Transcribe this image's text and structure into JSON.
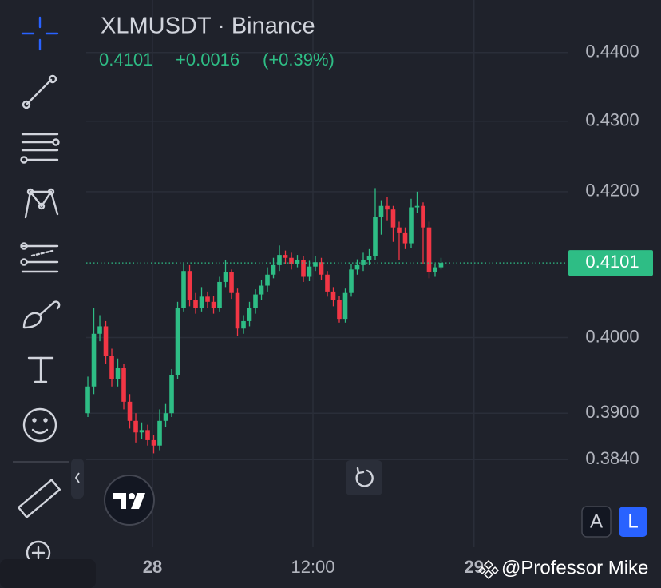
{
  "chart_data": {
    "type": "candlestick",
    "title": "XLMUSDT · Binance",
    "last_price_label": "0.4101",
    "change_label": "+0.0016",
    "change_percent_label": "(+0.39%)",
    "last_price": 0.4101,
    "up_color": "#2ebd85",
    "down_color": "#f23645",
    "log_scale": true,
    "grid": true,
    "categories": [
      null,
      null,
      null,
      null,
      null,
      null,
      null,
      null,
      null,
      null,
      null,
      null,
      null,
      null,
      null,
      null,
      null,
      null,
      null,
      null,
      null,
      null,
      null,
      null,
      null,
      null,
      null,
      null,
      null,
      null,
      null,
      null,
      null,
      null,
      null,
      null,
      null,
      null,
      null,
      null,
      null,
      null,
      null,
      null,
      null,
      null,
      null,
      null,
      null,
      null,
      null,
      null,
      null,
      null,
      null,
      null,
      null,
      null,
      null,
      null
    ],
    "open": [
      0.39,
      0.3935,
      0.4005,
      0.4015,
      0.3975,
      0.3945,
      0.396,
      0.3915,
      0.389,
      0.3875,
      0.3878,
      0.3865,
      0.3858,
      0.389,
      0.39,
      0.395,
      0.404,
      0.409,
      0.405,
      0.404,
      0.4055,
      0.4048,
      0.404,
      0.4075,
      0.4088,
      0.406,
      0.4012,
      0.4022,
      0.404,
      0.4058,
      0.407,
      0.4085,
      0.4098,
      0.4112,
      0.4108,
      0.41,
      0.4105,
      0.4082,
      0.4096,
      0.4102,
      0.4085,
      0.4062,
      0.405,
      0.4025,
      0.406,
      0.4092,
      0.4098,
      0.4105,
      0.411,
      0.4165,
      0.418,
      0.4175,
      0.415,
      0.4142,
      0.4128,
      0.4178,
      0.418,
      0.415,
      0.4088,
      0.4095
    ],
    "high": [
      0.3948,
      0.404,
      0.403,
      0.4022,
      0.3985,
      0.3972,
      0.3965,
      0.3925,
      0.39,
      0.3888,
      0.3885,
      0.3872,
      0.3905,
      0.3912,
      0.3958,
      0.4048,
      0.4102,
      0.4098,
      0.406,
      0.4068,
      0.4062,
      0.4056,
      0.4082,
      0.4105,
      0.4092,
      0.4066,
      0.403,
      0.4048,
      0.4065,
      0.4078,
      0.4095,
      0.4108,
      0.4125,
      0.4118,
      0.4115,
      0.4112,
      0.411,
      0.4104,
      0.411,
      0.4108,
      0.409,
      0.4068,
      0.4056,
      0.4066,
      0.41,
      0.4106,
      0.4115,
      0.412,
      0.4205,
      0.4188,
      0.4192,
      0.418,
      0.4158,
      0.415,
      0.419,
      0.42,
      0.4185,
      0.4158,
      0.41,
      0.4108
    ],
    "low": [
      0.3895,
      0.3925,
      0.3995,
      0.3965,
      0.3935,
      0.3935,
      0.3905,
      0.388,
      0.3862,
      0.3866,
      0.3858,
      0.3848,
      0.3852,
      0.3882,
      0.3895,
      0.3945,
      0.4035,
      0.4042,
      0.4032,
      0.4035,
      0.404,
      0.4032,
      0.4035,
      0.4068,
      0.4052,
      0.4002,
      0.4005,
      0.4015,
      0.4032,
      0.405,
      0.4062,
      0.408,
      0.409,
      0.41,
      0.4092,
      0.4095,
      0.4075,
      0.4076,
      0.409,
      0.4078,
      0.4055,
      0.4042,
      0.402,
      0.402,
      0.4055,
      0.4085,
      0.409,
      0.4098,
      0.4105,
      0.414,
      0.416,
      0.413,
      0.4105,
      0.412,
      0.4122,
      0.417,
      0.41,
      0.408,
      0.4082,
      0.4092
    ],
    "close": [
      0.3935,
      0.4005,
      0.4015,
      0.3975,
      0.3945,
      0.396,
      0.3915,
      0.389,
      0.3875,
      0.3878,
      0.3865,
      0.3858,
      0.389,
      0.39,
      0.395,
      0.404,
      0.409,
      0.405,
      0.404,
      0.4055,
      0.4048,
      0.404,
      0.4075,
      0.4088,
      0.406,
      0.4012,
      0.4022,
      0.404,
      0.4058,
      0.407,
      0.4085,
      0.4098,
      0.4112,
      0.4108,
      0.41,
      0.4105,
      0.4082,
      0.4096,
      0.4102,
      0.4085,
      0.4062,
      0.405,
      0.4025,
      0.406,
      0.4092,
      0.4098,
      0.4105,
      0.411,
      0.4165,
      0.418,
      0.4175,
      0.415,
      0.4142,
      0.4128,
      0.4178,
      0.418,
      0.415,
      0.4088,
      0.4095,
      0.4101
    ],
    "ylim": [
      0.3729,
      0.4478
    ],
    "yticks": [
      {
        "value": 0.44,
        "label": "0.4400"
      },
      {
        "value": 0.43,
        "label": "0.4300"
      },
      {
        "value": 0.42,
        "label": "0.4200"
      },
      {
        "value": 0.4,
        "label": "0.4000"
      },
      {
        "value": 0.39,
        "label": "0.3900"
      },
      {
        "value": 0.384,
        "label": "0.3840"
      }
    ],
    "xlim": [
      -0.27,
      80.27
    ],
    "xticks": [
      {
        "value": 10.8,
        "label": "28"
      },
      {
        "value": 37.6,
        "label": "12:00"
      },
      {
        "value": 64.5,
        "label": "29"
      }
    ]
  },
  "ui": {
    "buttons": [
      "A",
      "L"
    ],
    "watermark": "@Professor Mike"
  }
}
